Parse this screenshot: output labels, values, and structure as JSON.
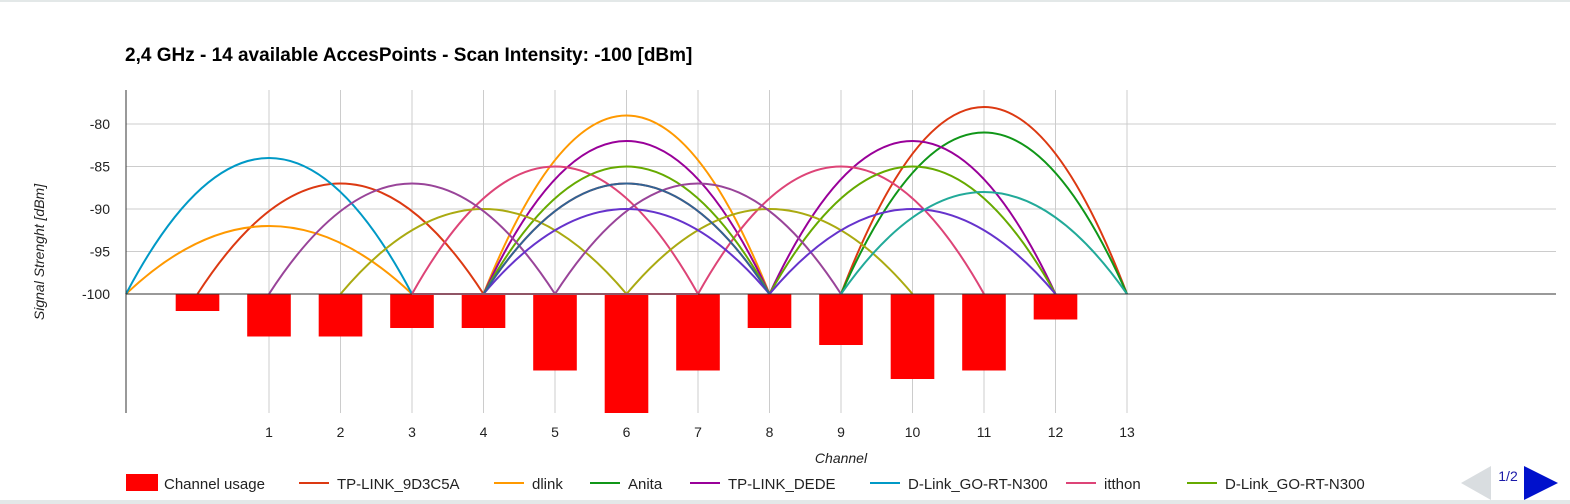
{
  "chart_data": {
    "type": "line",
    "title": "2,4 GHz - 14 available AccesPoints - Scan Intensity: -100 [dBm]",
    "xlabel": "Channel",
    "ylabel": "Signal Strenght [dBm]",
    "xlim": [
      -1,
      19
    ],
    "ylim": [
      -114,
      -76
    ],
    "x_ticks": [
      1,
      2,
      3,
      4,
      5,
      6,
      7,
      8,
      9,
      10,
      11,
      12,
      13
    ],
    "y_ticks": [
      -80,
      -85,
      -90,
      -95,
      -100
    ],
    "baseline": -100,
    "grid": true,
    "legend_position": "bottom",
    "channel_usage": {
      "name": "Channel usage",
      "color": "#ff0000",
      "channels": [
        0,
        1,
        2,
        3,
        4,
        5,
        6,
        7,
        8,
        9,
        10,
        11,
        12
      ],
      "values": [
        -102,
        -105,
        -105,
        -104,
        -104,
        -109,
        -114,
        -109,
        -104,
        -106,
        -110,
        -109,
        -103
      ]
    },
    "series": [
      {
        "name": "TP-LINK_9D3C5A",
        "color": "#dc3912",
        "center": 2,
        "peak": -87
      },
      {
        "name": "TP-LINK_9D3C5A",
        "color": "#dc3912",
        "center": 6,
        "peak": -87
      },
      {
        "name": "TP-LINK_9D3C5A",
        "color": "#dc3912",
        "center": 11,
        "peak": -78
      },
      {
        "name": "dlink",
        "color": "#ff9900",
        "center": 1,
        "peak": -92
      },
      {
        "name": "dlink",
        "color": "#ff9900",
        "center": 6,
        "peak": -79
      },
      {
        "name": "Anita",
        "color": "#109618",
        "center": 11,
        "peak": -81
      },
      {
        "name": "TP-LINK_DEDE",
        "color": "#990099",
        "center": 6,
        "peak": -82
      },
      {
        "name": "TP-LINK_DEDE",
        "color": "#990099",
        "center": 10,
        "peak": -82
      },
      {
        "name": "D-Link_GO-RT-N300",
        "color": "#0099c6",
        "center": 1,
        "peak": -84
      },
      {
        "name": "itthon",
        "color": "#dd4477",
        "center": 5,
        "peak": -85
      },
      {
        "name": "itthon",
        "color": "#dd4477",
        "center": 9,
        "peak": -85
      },
      {
        "name": "D-Link_GO-RT-N300",
        "color": "#66aa00",
        "center": 6,
        "peak": -85
      },
      {
        "name": "D-Link_GO-RT-N300",
        "color": "#66aa00",
        "center": 10,
        "peak": -85
      },
      {
        "name": "",
        "color": "#aaaa11",
        "center": 4,
        "peak": -90
      },
      {
        "name": "",
        "color": "#aaaa11",
        "center": 8,
        "peak": -90
      },
      {
        "name": "",
        "color": "#994499",
        "center": 3,
        "peak": -87
      },
      {
        "name": "",
        "color": "#994499",
        "center": 7,
        "peak": -87
      },
      {
        "name": "",
        "color": "#6633cc",
        "center": 6,
        "peak": -90
      },
      {
        "name": "",
        "color": "#6633cc",
        "center": 10,
        "peak": -90
      },
      {
        "name": "",
        "color": "#316395",
        "center": 6,
        "peak": -87
      },
      {
        "name": "",
        "color": "#22aa99",
        "center": 11,
        "peak": -88
      },
      {
        "name": "",
        "color": "#ee7799",
        "center": 5,
        "peak": -100
      }
    ]
  },
  "legend": [
    {
      "label": "Channel usage",
      "color": "#ff0000",
      "kind": "box"
    },
    {
      "label": "TP-LINK_9D3C5A",
      "color": "#dc3912",
      "kind": "line"
    },
    {
      "label": "dlink",
      "color": "#ff9900",
      "kind": "line"
    },
    {
      "label": "Anita",
      "color": "#109618",
      "kind": "line"
    },
    {
      "label": "TP-LINK_DEDE",
      "color": "#990099",
      "kind": "line"
    },
    {
      "label": "D-Link_GO-RT-N300",
      "color": "#0099c6",
      "kind": "line"
    },
    {
      "label": "itthon",
      "color": "#dd4477",
      "kind": "line"
    },
    {
      "label": "D-Link_GO-RT-N300",
      "color": "#66aa00",
      "kind": "line"
    }
  ],
  "legend_pager": {
    "page": "1/2",
    "prev_icon": "arrow-left-icon",
    "next_icon": "arrow-right-icon",
    "prev_color": "#d9dde0",
    "next_color": "#0011cc"
  }
}
